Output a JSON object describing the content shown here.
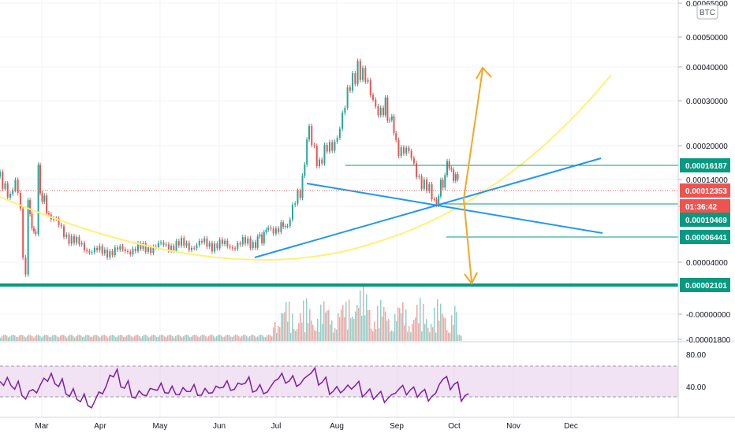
{
  "chart_data": {
    "type": "candlestick",
    "currency_badge": "BTC",
    "price_axis_ticks": [
      "0.00065000",
      "0.00050000",
      "0.00040000",
      "0.00030000",
      "0.00020000",
      "0.00014000",
      "0.0",
      "0.00004000",
      "-0.00000000",
      "-0.00001800"
    ],
    "time_axis_ticks": [
      "Mar",
      "Apr",
      "May",
      "Jun",
      "Jul",
      "Aug",
      "Sep",
      "Oct",
      "Nov",
      "Dec"
    ],
    "price_labels": [
      {
        "text": "0.00016187",
        "color": "#089981"
      },
      {
        "text": "0.00012353",
        "color": "#ef5350"
      },
      {
        "text": "01:36:42",
        "color": "#ef5350"
      },
      {
        "text": "0.00010469",
        "color": "#089981"
      },
      {
        "text": "0.00006441",
        "color": "#089981"
      },
      {
        "text": "0.00002101",
        "color": "#089981"
      }
    ],
    "rsi_ticks": [
      "80.00",
      "40.00"
    ],
    "colors": {
      "up": "#26a69a",
      "down": "#ef5350",
      "trend": "#2196f3",
      "curve": "#fff176",
      "arrow": "#f5a623",
      "level": "#089981",
      "rsi": "#7b1fa2",
      "rsi_band": "#e1bee7"
    },
    "price_path": [
      [
        0,
        0.000145
      ],
      [
        0.04,
        0.000135
      ],
      [
        0.08,
        0.000115
      ],
      [
        0.12,
        0.00013
      ],
      [
        0.16,
        0.0001
      ],
      [
        0.18,
        4.5e-05
      ],
      [
        0.2,
        3.3e-05
      ],
      [
        0.22,
        0.00011
      ],
      [
        0.25,
        7.5e-05
      ],
      [
        0.28,
        6.8e-05
      ],
      [
        0.3,
        0.00015
      ],
      [
        0.33,
        0.00011
      ],
      [
        0.4,
        8.8e-05
      ],
      [
        0.5,
        7e-05
      ],
      [
        0.6,
        5.8e-05
      ],
      [
        0.7,
        5.2e-05
      ],
      [
        0.8,
        5e-05
      ],
      [
        0.9,
        5.1e-05
      ],
      [
        1.0,
        5.2e-05
      ],
      [
        1.1,
        5.3e-05
      ],
      [
        1.2,
        5.5e-05
      ],
      [
        1.3,
        5.6e-05
      ],
      [
        1.4,
        5.7e-05
      ],
      [
        1.5,
        5.6e-05
      ],
      [
        1.6,
        5.8e-05
      ],
      [
        1.7,
        5.7e-05
      ],
      [
        1.8,
        5.6e-05
      ],
      [
        1.9,
        5.8e-05
      ],
      [
        2.0,
        6e-05
      ],
      [
        2.05,
        6.5e-05
      ],
      [
        2.1,
        7.5e-05
      ],
      [
        2.2,
        7.6e-05
      ],
      [
        2.25,
        8e-05
      ],
      [
        2.35,
        0.00012
      ],
      [
        2.42,
        0.00023
      ],
      [
        2.5,
        0.00017
      ],
      [
        2.6,
        0.0002
      ],
      [
        2.7,
        0.00028
      ],
      [
        2.8,
        0.00042
      ],
      [
        2.9,
        0.00031
      ],
      [
        3.0,
        0.00028
      ],
      [
        3.05,
        0.00027
      ],
      [
        3.1,
        0.00021
      ],
      [
        3.2,
        0.00018
      ],
      [
        3.3,
        0.00014
      ],
      [
        3.4,
        0.000105
      ],
      [
        3.45,
        0.000125
      ],
      [
        3.5,
        0.000165
      ],
      [
        3.55,
        0.00015
      ],
      [
        3.6,
        0.000124
      ]
    ],
    "levels": [
      "0.00016187",
      "0.00010469",
      "0.00006441",
      "0.00002101"
    ],
    "rsi_values": [
      60,
      55,
      42,
      50,
      65,
      58,
      45,
      38,
      30,
      48,
      70,
      55,
      42,
      45,
      52,
      48,
      46,
      50,
      45,
      48,
      55,
      52,
      60,
      50,
      48,
      65,
      62,
      58,
      72,
      60,
      48,
      50,
      55,
      45,
      42,
      38,
      50,
      48,
      45,
      40,
      62,
      55,
      40
    ]
  }
}
